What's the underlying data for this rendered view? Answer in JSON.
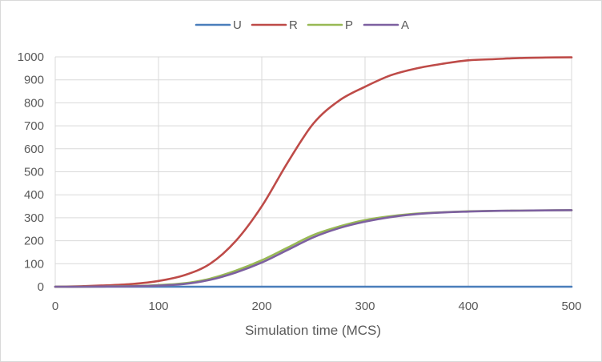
{
  "chart_data": {
    "type": "line",
    "title": "",
    "xlabel": "Simulation time (MCS)",
    "ylabel": "",
    "xlim": [
      0,
      500
    ],
    "ylim": [
      0,
      1000
    ],
    "x_ticks": [
      0,
      100,
      200,
      300,
      400,
      500
    ],
    "y_ticks": [
      0,
      100,
      200,
      300,
      400,
      500,
      600,
      700,
      800,
      900,
      1000
    ],
    "grid": true,
    "legend_position": "top",
    "x": [
      0,
      25,
      50,
      75,
      100,
      125,
      150,
      175,
      200,
      225,
      250,
      275,
      300,
      325,
      350,
      375,
      400,
      425,
      450,
      475,
      500
    ],
    "series": [
      {
        "name": "U",
        "color": "#4a7ebb",
        "values": [
          0,
          0,
          0,
          0,
          0,
          0,
          0,
          0,
          0,
          0,
          0,
          0,
          0,
          0,
          0,
          0,
          0,
          0,
          0,
          0,
          0
        ]
      },
      {
        "name": "R",
        "color": "#be4b48",
        "values": [
          0,
          2,
          6,
          12,
          25,
          50,
          100,
          200,
          350,
          540,
          710,
          810,
          870,
          920,
          950,
          970,
          985,
          990,
          995,
          997,
          998
        ]
      },
      {
        "name": "P",
        "color": "#98b954",
        "values": [
          0,
          0,
          1,
          3,
          7,
          15,
          35,
          70,
          115,
          170,
          225,
          262,
          290,
          307,
          318,
          324,
          328,
          330,
          331,
          332,
          333
        ]
      },
      {
        "name": "A",
        "color": "#7d60a0",
        "values": [
          0,
          0,
          1,
          2,
          5,
          12,
          30,
          62,
          105,
          160,
          215,
          255,
          283,
          303,
          316,
          323,
          327,
          330,
          331,
          332,
          333
        ]
      }
    ]
  }
}
